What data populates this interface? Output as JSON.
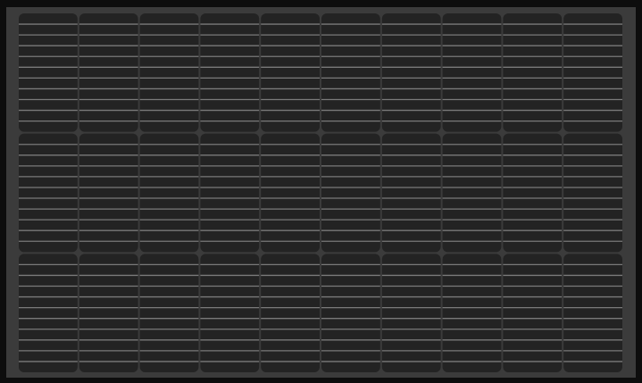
{
  "subject": "solar-panel",
  "panel": {
    "cell_columns": 10,
    "cell_rows": 3,
    "lines_per_cell": 11,
    "colors": {
      "frame": "#0d0d0d",
      "backsheet": "#3b3b3b",
      "cell": "#232323",
      "busbar": "#7a7a7a"
    }
  }
}
